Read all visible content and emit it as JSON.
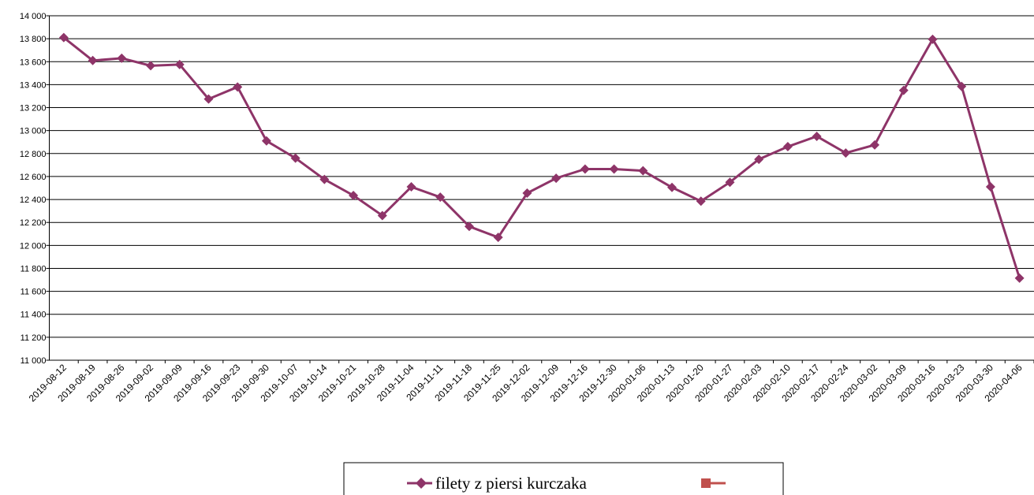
{
  "chart_data": {
    "type": "line",
    "categories": [
      "2019-08-12",
      "2019-08-19",
      "2019-08-26",
      "2019-09-02",
      "2019-09-09",
      "2019-09-16",
      "2019-09-23",
      "2019-09-30",
      "2019-10-07",
      "2019-10-14",
      "2019-10-21",
      "2019-10-28",
      "2019-11-04",
      "2019-11-11",
      "2019-11-18",
      "2019-11-25",
      "2019-12-02",
      "2019-12-09",
      "2019-12-16",
      "2019-12-30",
      "2020-01-06",
      "2020-01-13",
      "2020-01-20",
      "2020-01-27",
      "2020-02-03",
      "2020-02-10",
      "2020-02-17",
      "2020-02-24",
      "2020-03-02",
      "2020-03-09",
      "2020-03-16",
      "2020-03-23",
      "2020-03-30",
      "2020-04-06"
    ],
    "series": [
      {
        "name": "filety z piersi kurczaka",
        "color": "#8e3468",
        "values": [
          13810,
          13610,
          13630,
          13565,
          13575,
          13275,
          13380,
          12910,
          12760,
          12575,
          12435,
          12260,
          12510,
          12420,
          12165,
          12070,
          12455,
          12585,
          12665,
          12665,
          12650,
          12505,
          12385,
          12550,
          12750,
          12860,
          12950,
          12805,
          12875,
          13350,
          13795,
          13385,
          12510,
          11715
        ]
      }
    ],
    "ylim": [
      11000,
      14000
    ],
    "yticks": [
      {
        "value": 11000,
        "label": "11 000"
      },
      {
        "value": 11200,
        "label": "11 200"
      },
      {
        "value": 11400,
        "label": "11 400"
      },
      {
        "value": 11600,
        "label": "11 600"
      },
      {
        "value": 11800,
        "label": "11 800"
      },
      {
        "value": 12000,
        "label": "12 000"
      },
      {
        "value": 12200,
        "label": "12 200"
      },
      {
        "value": 12400,
        "label": "12 400"
      },
      {
        "value": 12600,
        "label": "12 600"
      },
      {
        "value": 12800,
        "label": "12 800"
      },
      {
        "value": 13000,
        "label": "13 000"
      },
      {
        "value": 13200,
        "label": "13 200"
      },
      {
        "value": 13400,
        "label": "13 400"
      },
      {
        "value": 13600,
        "label": "13 600"
      },
      {
        "value": 13800,
        "label": "13 800"
      },
      {
        "value": 14000,
        "label": "14 000"
      }
    ],
    "grid": true
  }
}
